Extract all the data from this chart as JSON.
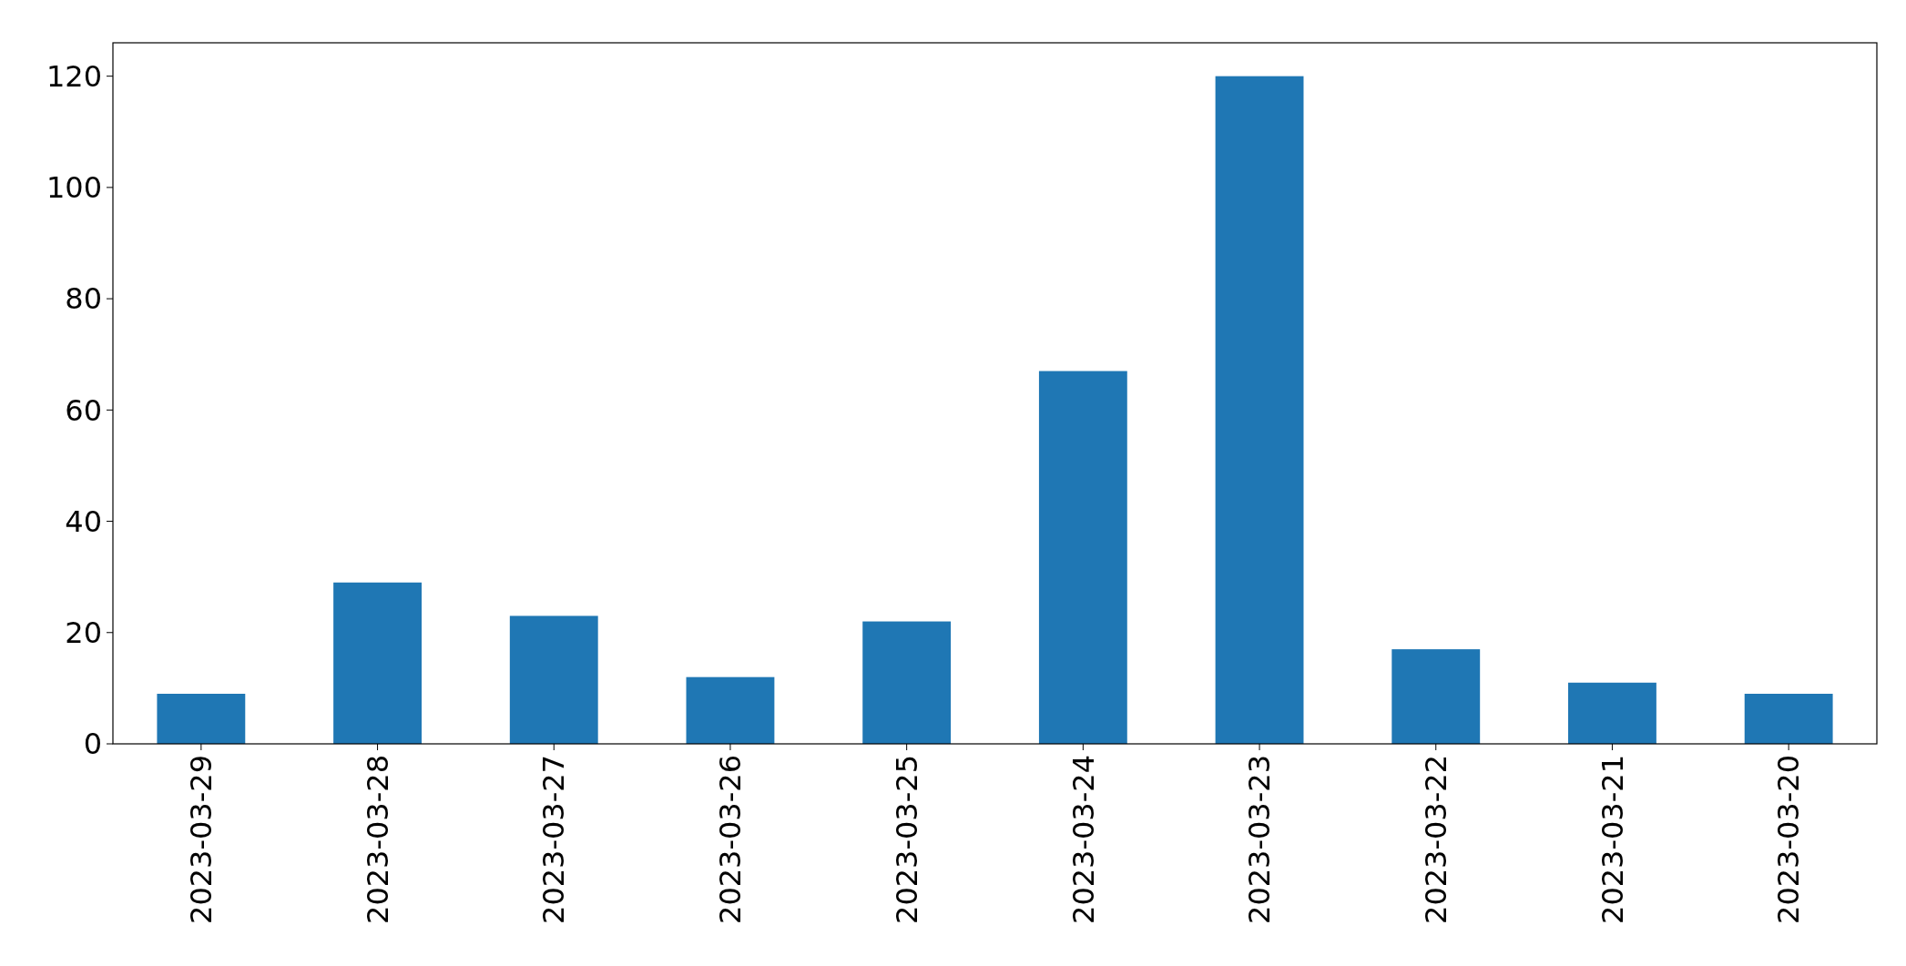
{
  "chart_data": {
    "type": "bar",
    "categories": [
      "2023-03-29",
      "2023-03-28",
      "2023-03-27",
      "2023-03-26",
      "2023-03-25",
      "2023-03-24",
      "2023-03-23",
      "2023-03-22",
      "2023-03-21",
      "2023-03-20"
    ],
    "values": [
      9,
      29,
      23,
      12,
      22,
      67,
      120,
      17,
      11,
      9
    ],
    "color": "#1f77b4",
    "ylim": [
      0,
      126
    ],
    "yticks": [
      0,
      20,
      40,
      60,
      80,
      100,
      120
    ],
    "grid": false
  }
}
